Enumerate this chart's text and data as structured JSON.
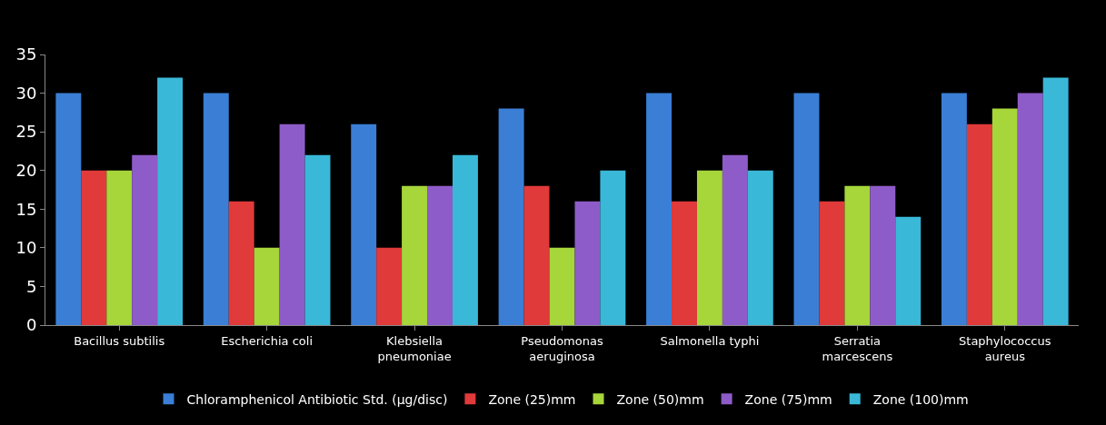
{
  "chart_data": {
    "type": "bar",
    "categories": [
      "Bacillus subtilis",
      "Escherichia coli",
      "Klebsiella pneumoniae",
      "Pseudomonas aeruginosa",
      "Salmonella typhi",
      "Serratia marcescens",
      "Staphylococcus aureus"
    ],
    "series": [
      {
        "name": "Chloramphenicol Antibiotic Std. (µg/disc)",
        "color": "#3a7fd5",
        "values": [
          30,
          30,
          26,
          28,
          30,
          30,
          30
        ]
      },
      {
        "name": "Zone (25)mm",
        "color": "#e03a3a",
        "values": [
          20,
          16,
          10,
          18,
          16,
          16,
          26
        ]
      },
      {
        "name": "Zone (50)mm",
        "color": "#a6d63a",
        "values": [
          20,
          10,
          18,
          10,
          20,
          18,
          28
        ]
      },
      {
        "name": "Zone (75)mm",
        "color": "#8e5cc8",
        "values": [
          22,
          26,
          18,
          16,
          22,
          18,
          30
        ]
      },
      {
        "name": "Zone (100)mm",
        "color": "#3ab8d8",
        "values": [
          32,
          22,
          22,
          20,
          20,
          14,
          32
        ]
      }
    ],
    "ylim": [
      0,
      35
    ],
    "yticks": [
      0,
      5,
      10,
      15,
      20,
      25,
      30,
      35
    ],
    "grid": false,
    "legend": "bottom"
  }
}
